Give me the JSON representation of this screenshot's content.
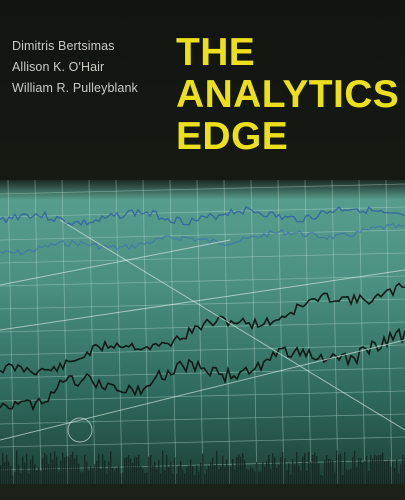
{
  "cover": {
    "authors": [
      "Dimitris Bertsimas",
      "Allison K. O'Hair",
      "William R. Pulleyblank"
    ],
    "title_lines": [
      "THE",
      "ANALYTICS",
      "EDGE"
    ],
    "colors": {
      "background": "#141710",
      "title": "#ecdf1c",
      "authors": "#c9cbc3",
      "art_base": "#3f7a6c"
    }
  }
}
